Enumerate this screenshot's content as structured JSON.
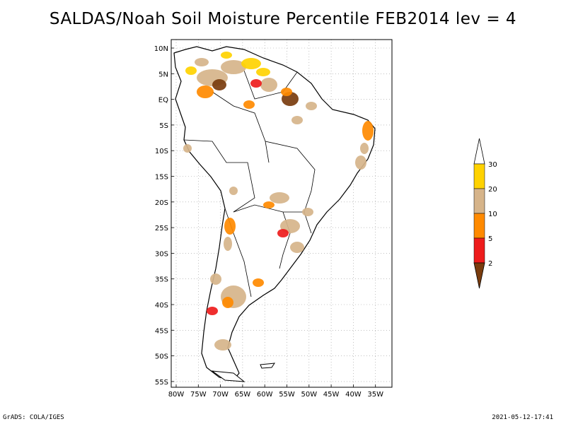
{
  "title": "SALDAS/Noah Soil Moisture Percentile FEB2014 lev = 4",
  "map": {
    "lat_labels": [
      "10N",
      "5N",
      "EQ",
      "5S",
      "10S",
      "15S",
      "20S",
      "25S",
      "30S",
      "35S",
      "40S",
      "45S",
      "50S",
      "55S"
    ],
    "lon_labels": [
      "80W",
      "75W",
      "70W",
      "65W",
      "60W",
      "55W",
      "50W",
      "45W",
      "40W",
      "35W"
    ],
    "grid": true,
    "region": "South America"
  },
  "legend": {
    "labels": [
      "2",
      "5",
      "10",
      "20",
      "30"
    ],
    "colors": [
      "#7a3c0e",
      "#ee1c1c",
      "#ff8a00",
      "#d6b48a",
      "#ffd200",
      "#ffffff"
    ]
  },
  "footer": {
    "left": "GrADS: COLA/IGES",
    "right": "2021-05-12-17:41"
  }
}
